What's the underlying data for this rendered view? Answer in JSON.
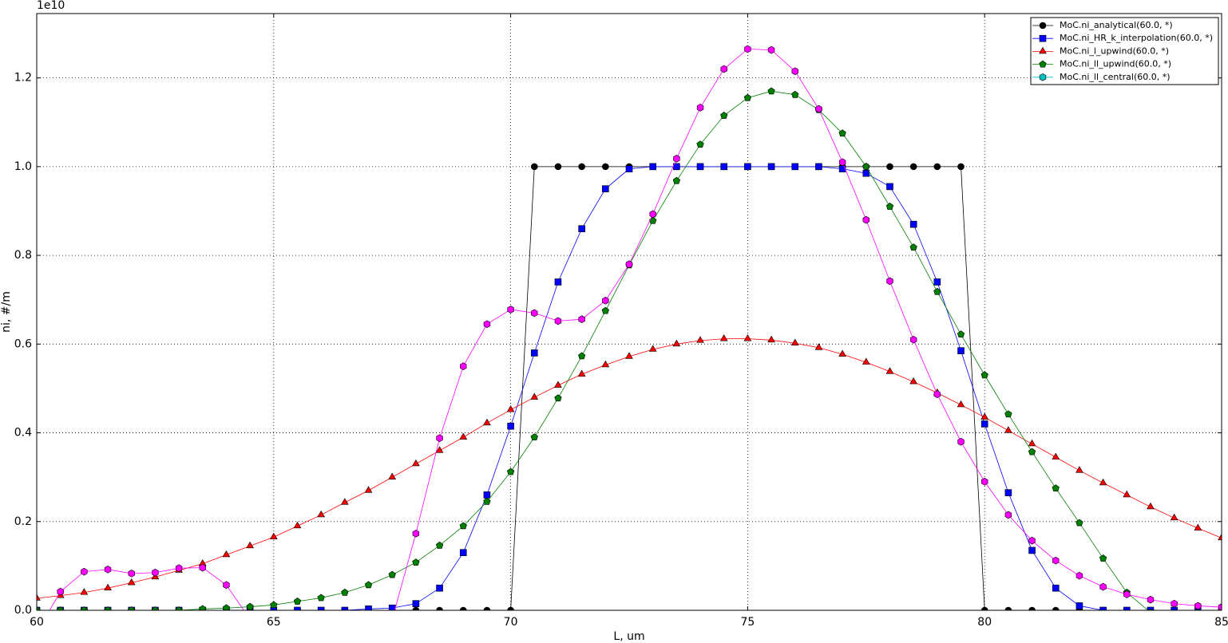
{
  "chart_data": {
    "type": "line",
    "offset_label": "1e10",
    "x_label": "L, um",
    "y_label": "ni, #/m",
    "x": [
      60,
      60.5,
      61,
      61.5,
      62,
      62.5,
      63,
      63.5,
      64,
      64.5,
      65,
      65.5,
      66,
      66.5,
      67,
      67.5,
      68,
      68.5,
      69,
      69.5,
      70,
      70.5,
      71,
      71.5,
      72,
      72.5,
      73,
      73.5,
      74,
      74.5,
      75,
      75.5,
      76,
      76.5,
      77,
      77.5,
      78,
      78.5,
      79,
      79.5,
      80,
      80.5,
      81,
      81.5,
      82,
      82.5,
      83,
      83.5,
      84,
      84.5,
      85
    ],
    "xlim": [
      60,
      85
    ],
    "xticks": [
      60,
      65,
      70,
      75,
      80,
      85
    ],
    "ylim": [
      0,
      1.345
    ],
    "yticks": [
      {
        "value": 0,
        "label": "0.0"
      },
      0.2,
      0.4,
      0.6,
      0.8,
      {
        "value": 1,
        "label": "1.0"
      },
      1.2
    ],
    "grid": true,
    "legend": "upper right",
    "series": [
      {
        "name": "MoC.ni_analytical(60.0, *)",
        "color": "#000000",
        "marker": "circle",
        "values": [
          0,
          0,
          0,
          0,
          0,
          0,
          0,
          0,
          0,
          0,
          0,
          0,
          0,
          0,
          0,
          0,
          0,
          0,
          0,
          0,
          0,
          1,
          1,
          1,
          1,
          1,
          1,
          1,
          1,
          1,
          1,
          1,
          1,
          1,
          1,
          1,
          1,
          1,
          1,
          1,
          0,
          0,
          0,
          0,
          0,
          0,
          0,
          0,
          0,
          0,
          0
        ]
      },
      {
        "name": "MoC.ni_HR_k_interpolation(60.0, *)",
        "color": "#0000ff",
        "marker": "square",
        "values": [
          0,
          0,
          0,
          0,
          0,
          0,
          0,
          0,
          0,
          0,
          0,
          0,
          0,
          0,
          0.003,
          0.005,
          0.015,
          0.05,
          0.13,
          0.26,
          0.415,
          0.58,
          0.74,
          0.86,
          0.95,
          0.995,
          1,
          1,
          1,
          1,
          1,
          1,
          1,
          1,
          0.995,
          0.985,
          0.955,
          0.87,
          0.74,
          0.585,
          0.42,
          0.265,
          0.135,
          0.05,
          0.01,
          0,
          0,
          0,
          0,
          0,
          0
        ]
      },
      {
        "name": "MoC.ni_l_upwind(60.0, *)",
        "color": "#ff0000",
        "marker": "triangle",
        "values": [
          0.027,
          0.033,
          0.04,
          0.05,
          0.062,
          0.075,
          0.09,
          0.105,
          0.125,
          0.145,
          0.165,
          0.19,
          0.215,
          0.243,
          0.27,
          0.3,
          0.33,
          0.36,
          0.39,
          0.422,
          0.452,
          0.48,
          0.507,
          0.532,
          0.553,
          0.572,
          0.588,
          0.6,
          0.608,
          0.612,
          0.612,
          0.609,
          0.602,
          0.592,
          0.577,
          0.559,
          0.538,
          0.515,
          0.49,
          0.463,
          0.435,
          0.405,
          0.375,
          0.345,
          0.315,
          0.287,
          0.26,
          0.233,
          0.208,
          0.185,
          0.163
        ]
      },
      {
        "name": "MoC.ni_ll_upwind(60.0, *)",
        "color": "#008000",
        "marker": "pentagon",
        "values": [
          0,
          0,
          0,
          0,
          0,
          0,
          0,
          0.003,
          0.005,
          0.008,
          0.012,
          0.02,
          0.028,
          0.04,
          0.057,
          0.08,
          0.108,
          0.146,
          0.19,
          0.245,
          0.312,
          0.39,
          0.478,
          0.573,
          0.675,
          0.778,
          0.878,
          0.968,
          1.05,
          1.115,
          1.155,
          1.17,
          1.162,
          1.128,
          1.075,
          1,
          0.91,
          0.818,
          0.718,
          0.622,
          0.53,
          0.442,
          0.357,
          0.275,
          0.197,
          0.117,
          0.04,
          -0.005,
          -0.01,
          -0.005,
          -0.002
        ]
      },
      {
        "name": "MoC.ni_ll_central(60.0, *)",
        "color": "#ff00ff",
        "legend_color": "#00bfbf",
        "marker": "hexagon",
        "values": [
          -0.05,
          0.042,
          0.087,
          0.092,
          0.083,
          0.085,
          0.095,
          0.096,
          0.057,
          -0.02,
          -0.02,
          -0.02,
          -0.02,
          -0.02,
          -0.02,
          -0.02,
          0.173,
          0.388,
          0.55,
          0.645,
          0.678,
          0.67,
          0.652,
          0.656,
          0.698,
          0.78,
          0.893,
          1.018,
          1.133,
          1.22,
          1.265,
          1.263,
          1.215,
          1.13,
          1.01,
          0.88,
          0.742,
          0.61,
          0.487,
          0.38,
          0.29,
          0.215,
          0.157,
          0.112,
          0.078,
          0.053,
          0.036,
          0.024,
          0.015,
          0.01,
          0.007
        ]
      }
    ]
  }
}
